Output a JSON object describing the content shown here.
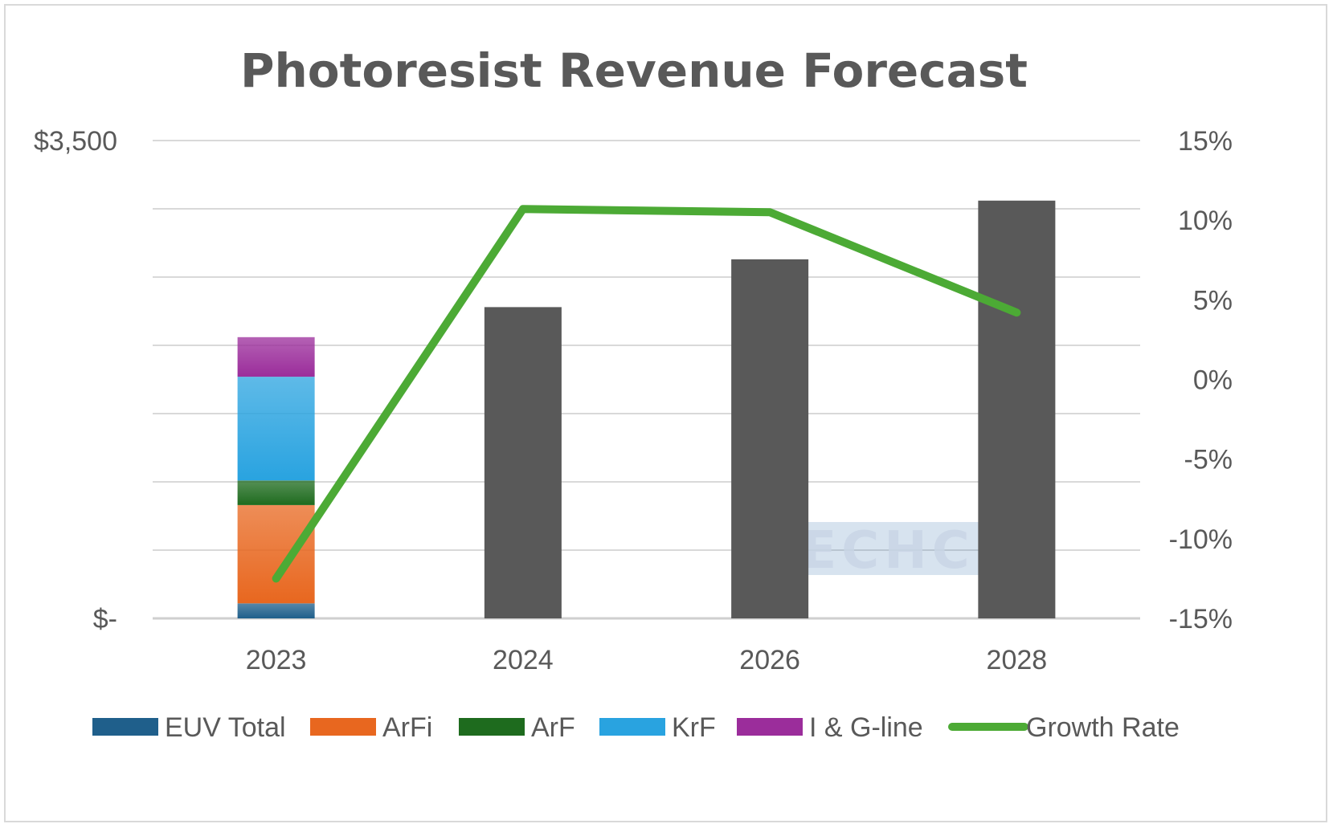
{
  "chart_data": {
    "type": "bar",
    "title": "Photoresist Revenue Forecast",
    "categories": [
      "2023",
      "2024",
      "2026",
      "2028"
    ],
    "y_axis": {
      "min": 0,
      "max": 3500,
      "step": 500,
      "labels": [
        {
          "value": 0,
          "text": "$-"
        },
        {
          "value": 3500,
          "text": "$3,500"
        }
      ]
    },
    "y2_axis": {
      "min": -15,
      "max": 15,
      "step": 5,
      "labels": [
        "-15%",
        "-10%",
        "-5%",
        "0%",
        "5%",
        "10%",
        "15%"
      ]
    },
    "series": [
      {
        "name": "EUV Total",
        "color": "#1f5f8b",
        "values": [
          110,
          null,
          null,
          null
        ]
      },
      {
        "name": "ArFi",
        "color": "#e8671f",
        "values": [
          720,
          null,
          null,
          null
        ]
      },
      {
        "name": "ArF",
        "color": "#1e6b1e",
        "values": [
          180,
          null,
          null,
          null
        ]
      },
      {
        "name": "KrF",
        "color": "#29a3e0",
        "values": [
          760,
          null,
          null,
          null
        ]
      },
      {
        "name": "I & G-line",
        "color": "#9b2d9b",
        "values": [
          290,
          null,
          null,
          null
        ]
      }
    ],
    "total_bars": {
      "color": "#595959",
      "values": [
        null,
        2280,
        2630,
        3060
      ]
    },
    "line_series": {
      "name": "Growth Rate",
      "color": "#4caa35",
      "axis": "right",
      "values": [
        -12.5,
        10.7,
        10.5,
        4.2
      ]
    },
    "grid": true,
    "legend_position": "bottom",
    "watermark": "TECHCET"
  }
}
